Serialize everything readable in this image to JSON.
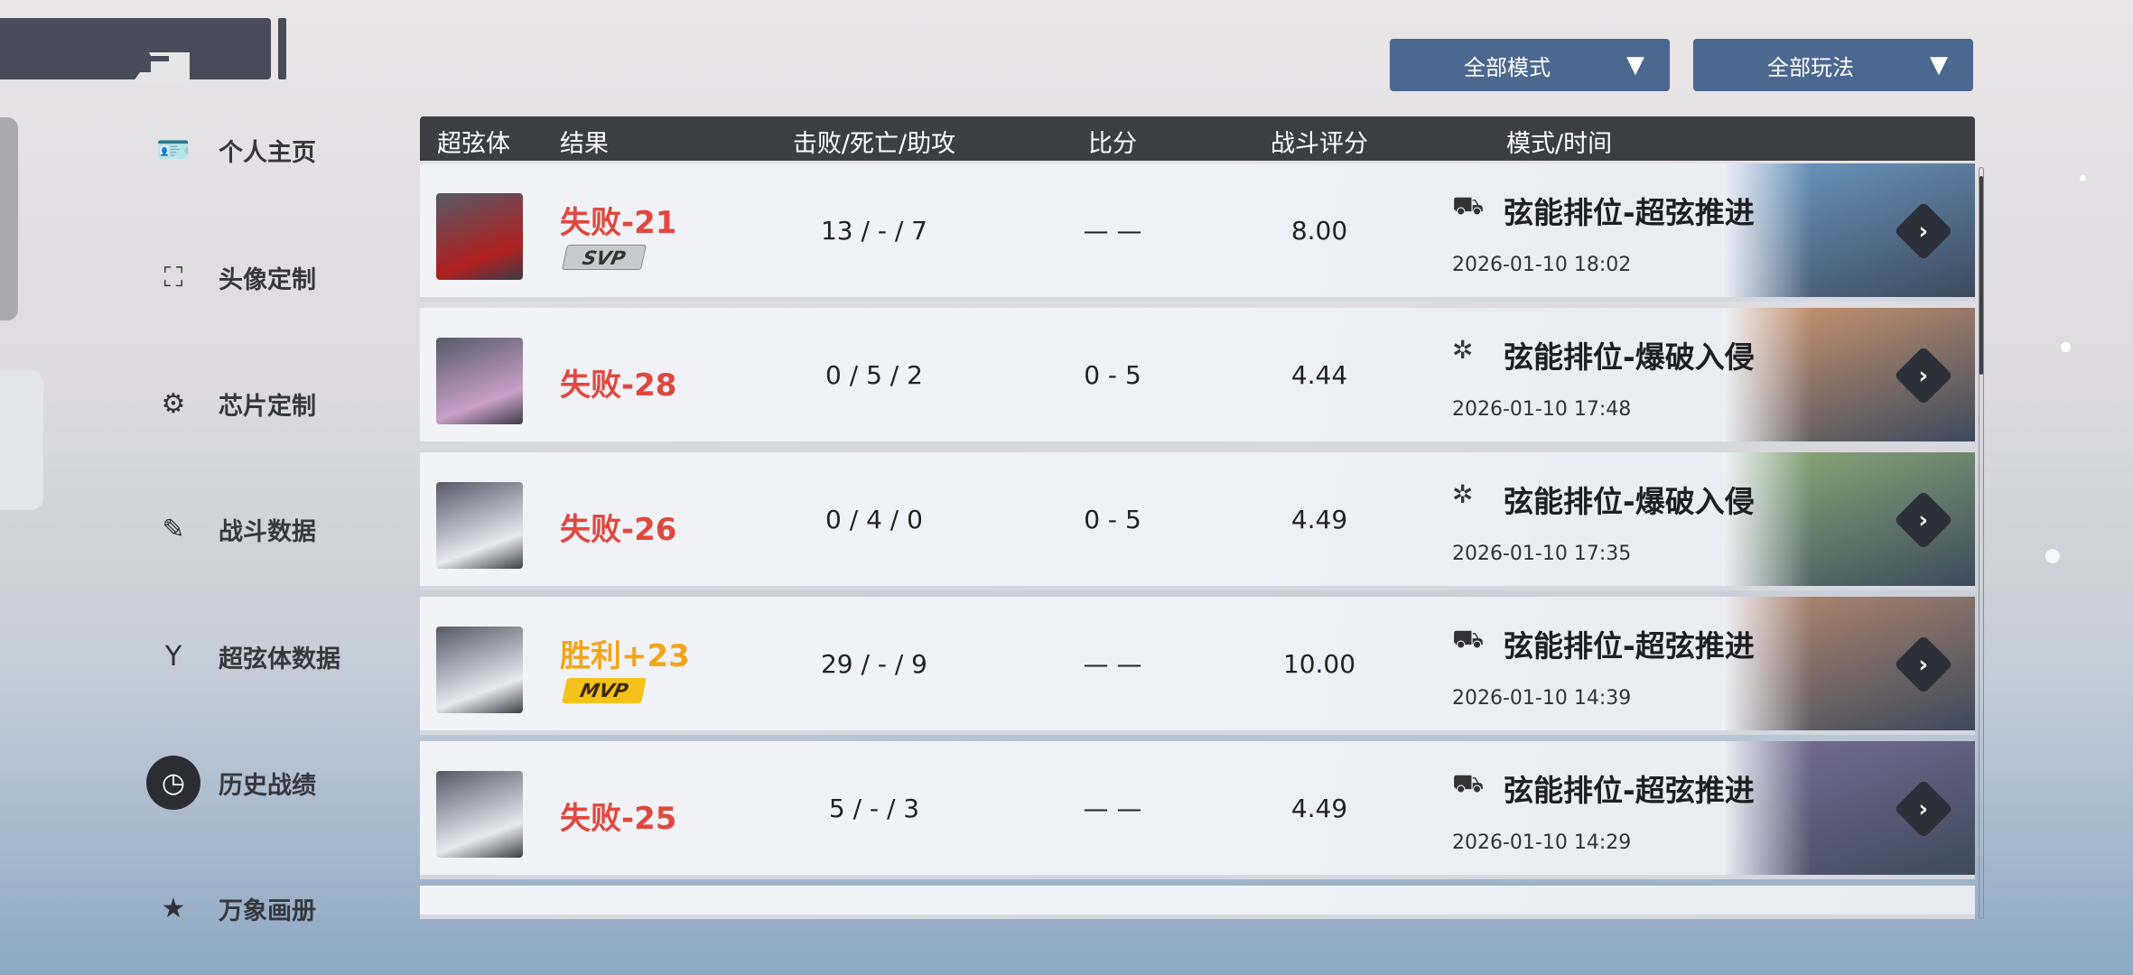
{
  "nav": {
    "items": [
      {
        "label": "个人主页",
        "icon": "id-card-icon"
      },
      {
        "label": "头像定制",
        "icon": "avatar-frame-icon"
      },
      {
        "label": "芯片定制",
        "icon": "chip-gear-icon"
      },
      {
        "label": "战斗数据",
        "icon": "edit-document-icon"
      },
      {
        "label": "超弦体数据",
        "icon": "y-emblem-icon"
      },
      {
        "label": "历史战绩",
        "icon": "history-clock-icon",
        "active": true
      },
      {
        "label": "万象画册",
        "icon": "star-book-icon"
      }
    ]
  },
  "filters": {
    "mode": "全部模式",
    "play": "全部玩法"
  },
  "table": {
    "headers": {
      "char": "超弦体",
      "result": "结果",
      "kda": "击败/死亡/助攻",
      "score": "比分",
      "rating": "战斗评分",
      "mode_time": "模式/时间"
    },
    "rows": [
      {
        "result": "失败-21",
        "win": false,
        "badge": "SVP",
        "kda": "13 / - / 7",
        "score": "— —",
        "rating": "8.00",
        "mode": "弦能排位-超弦推进",
        "mode_icon": "truck-icon",
        "date": "2026-01-10 18:02",
        "map_color": "#6f9cc8"
      },
      {
        "result": "失败-28",
        "win": false,
        "badge": "",
        "kda": "0 / 5 / 2",
        "score": "0 - 5",
        "rating": "4.44",
        "mode": "弦能排位-爆破入侵",
        "mode_icon": "bomb-icon",
        "date": "2026-01-10 17:48",
        "map_color": "#d49a72"
      },
      {
        "result": "失败-26",
        "win": false,
        "badge": "",
        "kda": "0 / 4 / 0",
        "score": "0 - 5",
        "rating": "4.49",
        "mode": "弦能排位-爆破入侵",
        "mode_icon": "bomb-icon",
        "date": "2026-01-10 17:35",
        "map_color": "#8fb07a"
      },
      {
        "result": "胜利+23",
        "win": true,
        "badge": "MVP",
        "kda": "29 / - / 9",
        "score": "— —",
        "rating": "10.00",
        "mode": "弦能排位-超弦推进",
        "mode_icon": "truck-icon",
        "date": "2026-01-10 14:39",
        "map_color": "#b98a70"
      },
      {
        "result": "失败-25",
        "win": false,
        "badge": "",
        "kda": "5 / - / 3",
        "score": "— —",
        "rating": "4.49",
        "mode": "弦能排位-超弦推进",
        "mode_icon": "truck-icon",
        "date": "2026-01-10 14:29",
        "map_color": "#7a6f95"
      }
    ]
  },
  "colors": {
    "loss": "#e0483f",
    "win": "#f2a51a",
    "header": "#3b3e45",
    "dropdown": "#4b6890"
  }
}
